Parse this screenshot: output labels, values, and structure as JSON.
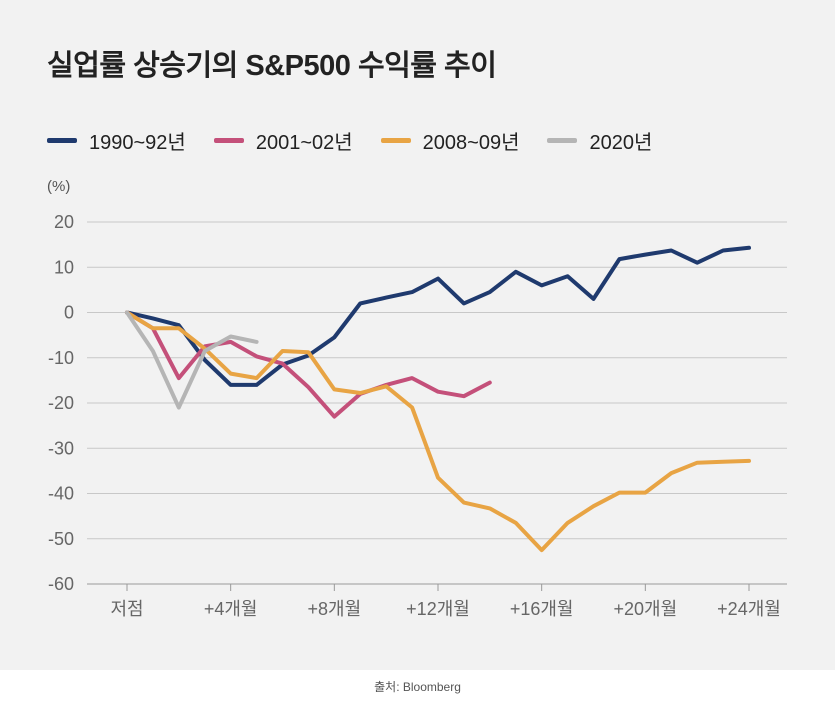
{
  "title": "실업률 상승기의 S&P500 수익률 추이",
  "unit_label": "(%)",
  "source": "출처: Bloomberg",
  "chart_data": {
    "type": "line",
    "title": "실업률 상승기의 S&P500 수익률 추이",
    "ylabel": "(%)",
    "xlabel": "",
    "ylim": [
      -60,
      20
    ],
    "yticks": [
      20,
      10,
      0,
      -10,
      -20,
      -30,
      -40,
      -50,
      -60
    ],
    "xlim": [
      0,
      24
    ],
    "xticks": [
      {
        "x": 0,
        "label": "저점"
      },
      {
        "x": 4,
        "label": "+4개월"
      },
      {
        "x": 8,
        "label": "+8개월"
      },
      {
        "x": 12,
        "label": "+12개월"
      },
      {
        "x": 16,
        "label": "+16개월"
      },
      {
        "x": 20,
        "label": "+20개월"
      },
      {
        "x": 24,
        "label": "+24개월"
      }
    ],
    "grid": true,
    "legend_position": "top",
    "series": [
      {
        "name": "1990~92년",
        "color": "#1f3a6e",
        "x": [
          0,
          1,
          2,
          3,
          4,
          5,
          6,
          7,
          8,
          9,
          10,
          11,
          12,
          13,
          14,
          15,
          16,
          17,
          18,
          19,
          20,
          21,
          22,
          23,
          24
        ],
        "values": [
          0,
          -1.3,
          -2.8,
          -10.5,
          -16,
          -16,
          -11.5,
          -9.5,
          -5.5,
          2,
          3.3,
          4.5,
          7.5,
          2,
          4.5,
          9,
          6,
          8,
          3,
          11.8,
          12.8,
          13.7,
          11,
          13.7,
          14.3
        ]
      },
      {
        "name": "2001~02년",
        "color": "#c4507a",
        "x": [
          0,
          1,
          2,
          3,
          4,
          5,
          6,
          7,
          8,
          9,
          10,
          11,
          12,
          13,
          14
        ],
        "values": [
          0,
          -3.5,
          -14.5,
          -7.5,
          -6.5,
          -9.7,
          -11.3,
          -16.5,
          -23,
          -18,
          -16,
          -14.5,
          -17.5,
          -18.5,
          -15.5
        ]
      },
      {
        "name": "2008~09년",
        "color": "#e8a444",
        "x": [
          0,
          1,
          2,
          3,
          4,
          5,
          6,
          7,
          8,
          9,
          10,
          11,
          12,
          13,
          14,
          15,
          16,
          17,
          18,
          19,
          20,
          21,
          22,
          23,
          24
        ],
        "values": [
          0,
          -3.5,
          -3.5,
          -8,
          -13.5,
          -14.5,
          -8.5,
          -8.8,
          -17,
          -17.8,
          -16.3,
          -21,
          -36.5,
          -42,
          -43.3,
          -46.5,
          -52.5,
          -46.5,
          -42.8,
          -39.8,
          -39.8,
          -35.5,
          -33.2,
          -33,
          -32.8
        ]
      },
      {
        "name": "2020년",
        "color": "#b5b5b5",
        "x": [
          0,
          1,
          2,
          3,
          4,
          5
        ],
        "values": [
          0,
          -8.5,
          -21,
          -8.5,
          -5.3,
          -6.5
        ]
      }
    ]
  }
}
